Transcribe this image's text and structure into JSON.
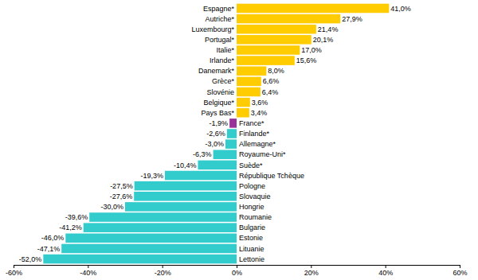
{
  "chart_data": {
    "type": "bar",
    "orientation": "horizontal",
    "data_labels": true,
    "categories": [
      "Espagne*",
      "Autriche*",
      "Luxembourg*",
      "Portugal*",
      "Italie*",
      "Irlande*",
      "Danemark*",
      "Grèce*",
      "Slovénie",
      "Belgique*",
      "Pays Bas*",
      "France*",
      "Finlande*",
      "Allemagne*",
      "Royaume-Uni*",
      "Suède*",
      "République Tchèque",
      "Pologne",
      "Slovaquie",
      "Hongrie",
      "Roumanie",
      "Bulgarie",
      "Estonie",
      "Lituanie",
      "Lettonie"
    ],
    "values": [
      41.0,
      27.9,
      21.4,
      20.1,
      17.0,
      15.6,
      8.0,
      6.6,
      6.4,
      3.6,
      3.4,
      -1.9,
      -2.6,
      -3.0,
      -6.3,
      -10.4,
      -19.3,
      -27.5,
      -27.6,
      -30.0,
      -39.6,
      -41.2,
      -46.0,
      -47.1,
      -52.0
    ],
    "value_labels": [
      "41,0%",
      "27,9%",
      "21,4%",
      "20,1%",
      "17,0%",
      "15,6%",
      "8,0%",
      "6,6%",
      "6,4%",
      "3,6%",
      "3,4%",
      "-1,9%",
      "-2,6%",
      "-3,0%",
      "-6,3%",
      "-10,4%",
      "-19,3%",
      "-27,5%",
      "-27,6%",
      "-30,0%",
      "-39,6%",
      "-41,2%",
      "-46,0%",
      "-47,1%",
      "-52,0%"
    ],
    "colors": [
      "#FFCC00",
      "#FFCC00",
      "#FFCC00",
      "#FFCC00",
      "#FFCC00",
      "#FFCC00",
      "#FFCC00",
      "#FFCC00",
      "#FFCC00",
      "#FFCC00",
      "#FFCC00",
      "#993399",
      "#33CCCC",
      "#33CCCC",
      "#33CCCC",
      "#33CCCC",
      "#33CCCC",
      "#33CCCC",
      "#33CCCC",
      "#33CCCC",
      "#33CCCC",
      "#33CCCC",
      "#33CCCC",
      "#33CCCC",
      "#33CCCC"
    ],
    "xlim": [
      -60,
      60
    ],
    "xticks": [
      {
        "value": -60,
        "label": "-60%"
      },
      {
        "value": -40,
        "label": "-40%"
      },
      {
        "value": -20,
        "label": "-20%"
      },
      {
        "value": 0,
        "label": "0%"
      },
      {
        "value": 20,
        "label": "20%"
      },
      {
        "value": 40,
        "label": "40%"
      },
      {
        "value": 60,
        "label": "60%"
      }
    ]
  }
}
